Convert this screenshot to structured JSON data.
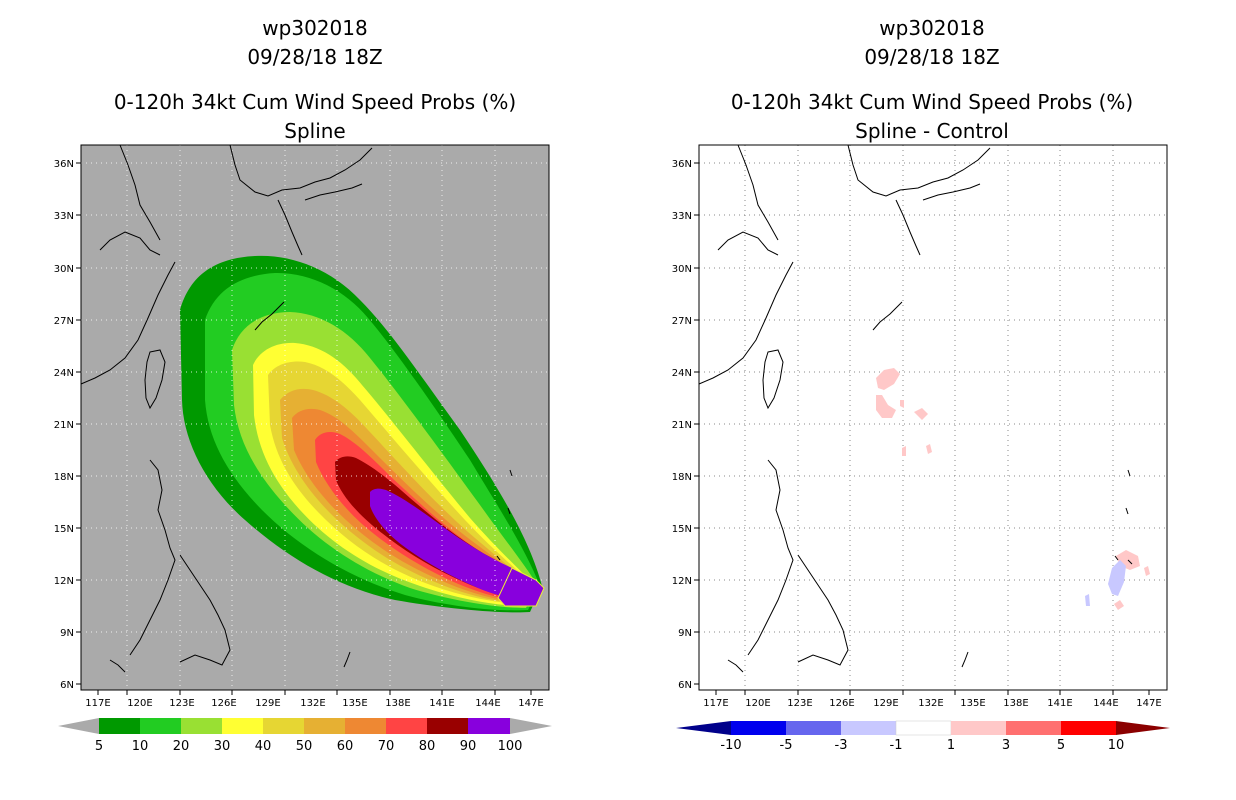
{
  "left": {
    "title1": "wp302018",
    "title2": "09/28/18 18Z",
    "title3": "0-120h 34kt Cum Wind Speed Probs (%)",
    "title4": "Spline",
    "lon_labels": [
      "117E",
      "120E",
      "123E",
      "126E",
      "129E",
      "132E",
      "135E",
      "138E",
      "141E",
      "144E",
      "147E"
    ],
    "lat_labels": [
      "36N",
      "33N",
      "30N",
      "27N",
      "24N",
      "21N",
      "18N",
      "15N",
      "12N",
      "9N",
      "6N"
    ],
    "colorbar": {
      "labels": [
        "5",
        "10",
        "20",
        "30",
        "40",
        "50",
        "60",
        "70",
        "80",
        "90",
        "100"
      ],
      "colors": [
        "#009900",
        "#22cc22",
        "#99e033",
        "#ffff33",
        "#e6d633",
        "#e6b033",
        "#ee8833",
        "#ff4444",
        "#990000",
        "#8800dd"
      ],
      "ends": "#aaaaaa"
    },
    "background": "#aaaaaa"
  },
  "right": {
    "title1": "wp302018",
    "title2": "09/28/18 18Z",
    "title3": "0-120h 34kt Cum Wind Speed Probs (%)",
    "title4": "Spline - Control",
    "lon_labels": [
      "117E",
      "120E",
      "123E",
      "126E",
      "129E",
      "132E",
      "135E",
      "138E",
      "141E",
      "144E",
      "147E"
    ],
    "lat_labels": [
      "36N",
      "33N",
      "30N",
      "27N",
      "24N",
      "21N",
      "18N",
      "15N",
      "12N",
      "9N",
      "6N"
    ],
    "colorbar": {
      "labels": [
        "-10",
        "-5",
        "-3",
        "-1",
        "1",
        "3",
        "5",
        "10"
      ],
      "colors": [
        "#0000ee",
        "#6666ee",
        "#c8c8ff",
        "#ffffff",
        "#ffc8c8",
        "#ff7070",
        "#ff0000"
      ],
      "end_low": "#00008b",
      "end_high": "#8b0000"
    }
  }
}
